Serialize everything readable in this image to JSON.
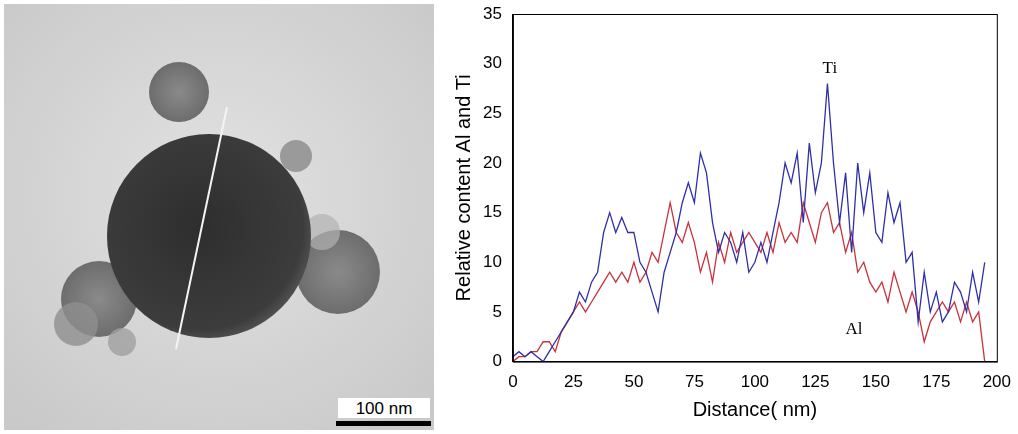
{
  "image": {
    "scale_bar": "100 nm"
  },
  "chart_data": {
    "type": "line",
    "x_label": "Distance( nm)",
    "y_label": "Relative content Al and Ti",
    "xlim": [
      0,
      200
    ],
    "xticks": [
      0,
      25,
      50,
      75,
      100,
      125,
      150,
      175,
      200
    ],
    "ylim": [
      0,
      35
    ],
    "yticks": [
      0,
      5,
      10,
      15,
      20,
      25,
      30,
      35
    ],
    "grid": false,
    "x": [
      0,
      2.5,
      5,
      7.5,
      10,
      12.5,
      15,
      17.5,
      20,
      22.5,
      25,
      27.5,
      30,
      32.5,
      35,
      37.5,
      40,
      42.5,
      45,
      47.5,
      50,
      52.5,
      55,
      57.5,
      60,
      62.5,
      65,
      67.5,
      70,
      72.5,
      75,
      77.5,
      80,
      82.5,
      85,
      87.5,
      90,
      92.5,
      95,
      97.5,
      100,
      102.5,
      105,
      107.5,
      110,
      112.5,
      115,
      117.5,
      120,
      122.5,
      125,
      127.5,
      130,
      132.5,
      135,
      137.5,
      140,
      142.5,
      145,
      147.5,
      150,
      152.5,
      155,
      157.5,
      160,
      162.5,
      165,
      167.5,
      170,
      172.5,
      175,
      177.5,
      180,
      182.5,
      185,
      187.5,
      190,
      192.5,
      195
    ],
    "series": [
      {
        "name": "Ti",
        "color": "#2f2fa8",
        "values": [
          0.5,
          1,
          0.5,
          1,
          0.5,
          0,
          1,
          2,
          3,
          4,
          5,
          7,
          6,
          8,
          9,
          13,
          15,
          13,
          14.5,
          13,
          13,
          10,
          9,
          7,
          5,
          9,
          11,
          13,
          16,
          18,
          16,
          21,
          19,
          14,
          11,
          13,
          12,
          10,
          13,
          9,
          10,
          12,
          10,
          13,
          16,
          20,
          18,
          21,
          14,
          22,
          17,
          20,
          28,
          20,
          14,
          19,
          11,
          20,
          15,
          19,
          13,
          12,
          17,
          14,
          16,
          10,
          11,
          4,
          9,
          5,
          7,
          4,
          5,
          8,
          7,
          5,
          9,
          6,
          10
        ]
      },
      {
        "name": "Al",
        "color": "#c8323c",
        "values": [
          0,
          0.5,
          0.5,
          1,
          1,
          2,
          2,
          1,
          3,
          4,
          5,
          6,
          5,
          6,
          7,
          8,
          9,
          8,
          9,
          8,
          10,
          8,
          9,
          11,
          10,
          13,
          16,
          13,
          12,
          14,
          12,
          9,
          11,
          8,
          12,
          10,
          13,
          11,
          12,
          13,
          12,
          11,
          13,
          11,
          14,
          12,
          13,
          12,
          16,
          14,
          12,
          15,
          16,
          13,
          14,
          11,
          13,
          9,
          10,
          8,
          7,
          8,
          6,
          9,
          7,
          5,
          7,
          5,
          2,
          4,
          5,
          6,
          5,
          6,
          4,
          6,
          4,
          5,
          0
        ]
      }
    ],
    "annotations": [
      {
        "text": "Ti",
        "x": 131,
        "y": 29.5
      },
      {
        "text": "Al",
        "x": 141,
        "y": 3.2
      }
    ]
  }
}
